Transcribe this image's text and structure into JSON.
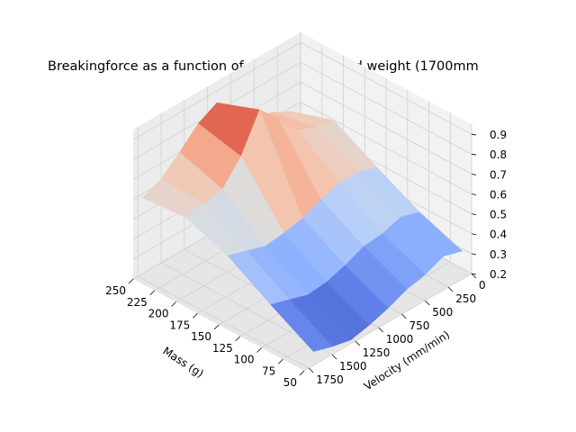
{
  "chart_data": {
    "type": "surface",
    "title": "Breakingforce as a function of sliding speed and weight (1700mm",
    "xlabel": "Mass (g)",
    "ylabel": "Velocity (mm/min)",
    "zlabel": "",
    "mass_ticks": [
      "250",
      "225",
      "200",
      "175",
      "150",
      "125",
      "100",
      "75",
      "50"
    ],
    "velocity_ticks": [
      "0",
      "250",
      "500",
      "750",
      "1000",
      "1250",
      "1500",
      "1750"
    ],
    "z_ticks": [
      "0.2",
      "0.3",
      "0.4",
      "0.5",
      "0.6",
      "0.7",
      "0.8",
      "0.9"
    ],
    "xlim": [
      50,
      250
    ],
    "ylim": [
      0,
      1800
    ],
    "zlim": [
      0.2,
      0.95
    ],
    "colormap": "coolwarm",
    "grid": true,
    "mass_values": [
      50,
      100,
      150,
      200,
      250
    ],
    "velocity_values": [
      100,
      300,
      500,
      700,
      900,
      1100,
      1300,
      1500,
      1700
    ],
    "z_values": [
      [
        0.34,
        0.37,
        0.33,
        0.31,
        0.27,
        0.24,
        0.22,
        0.24,
        0.27
      ],
      [
        0.42,
        0.45,
        0.42,
        0.41,
        0.37,
        0.34,
        0.33,
        0.36,
        0.39
      ],
      [
        0.53,
        0.56,
        0.56,
        0.53,
        0.49,
        0.47,
        0.46,
        0.49,
        0.52
      ],
      [
        0.65,
        0.67,
        0.71,
        0.82,
        0.92,
        0.74,
        0.63,
        0.61,
        0.6
      ],
      [
        0.58,
        0.63,
        0.66,
        0.72,
        0.84,
        0.79,
        0.7,
        0.62,
        0.58
      ]
    ]
  }
}
